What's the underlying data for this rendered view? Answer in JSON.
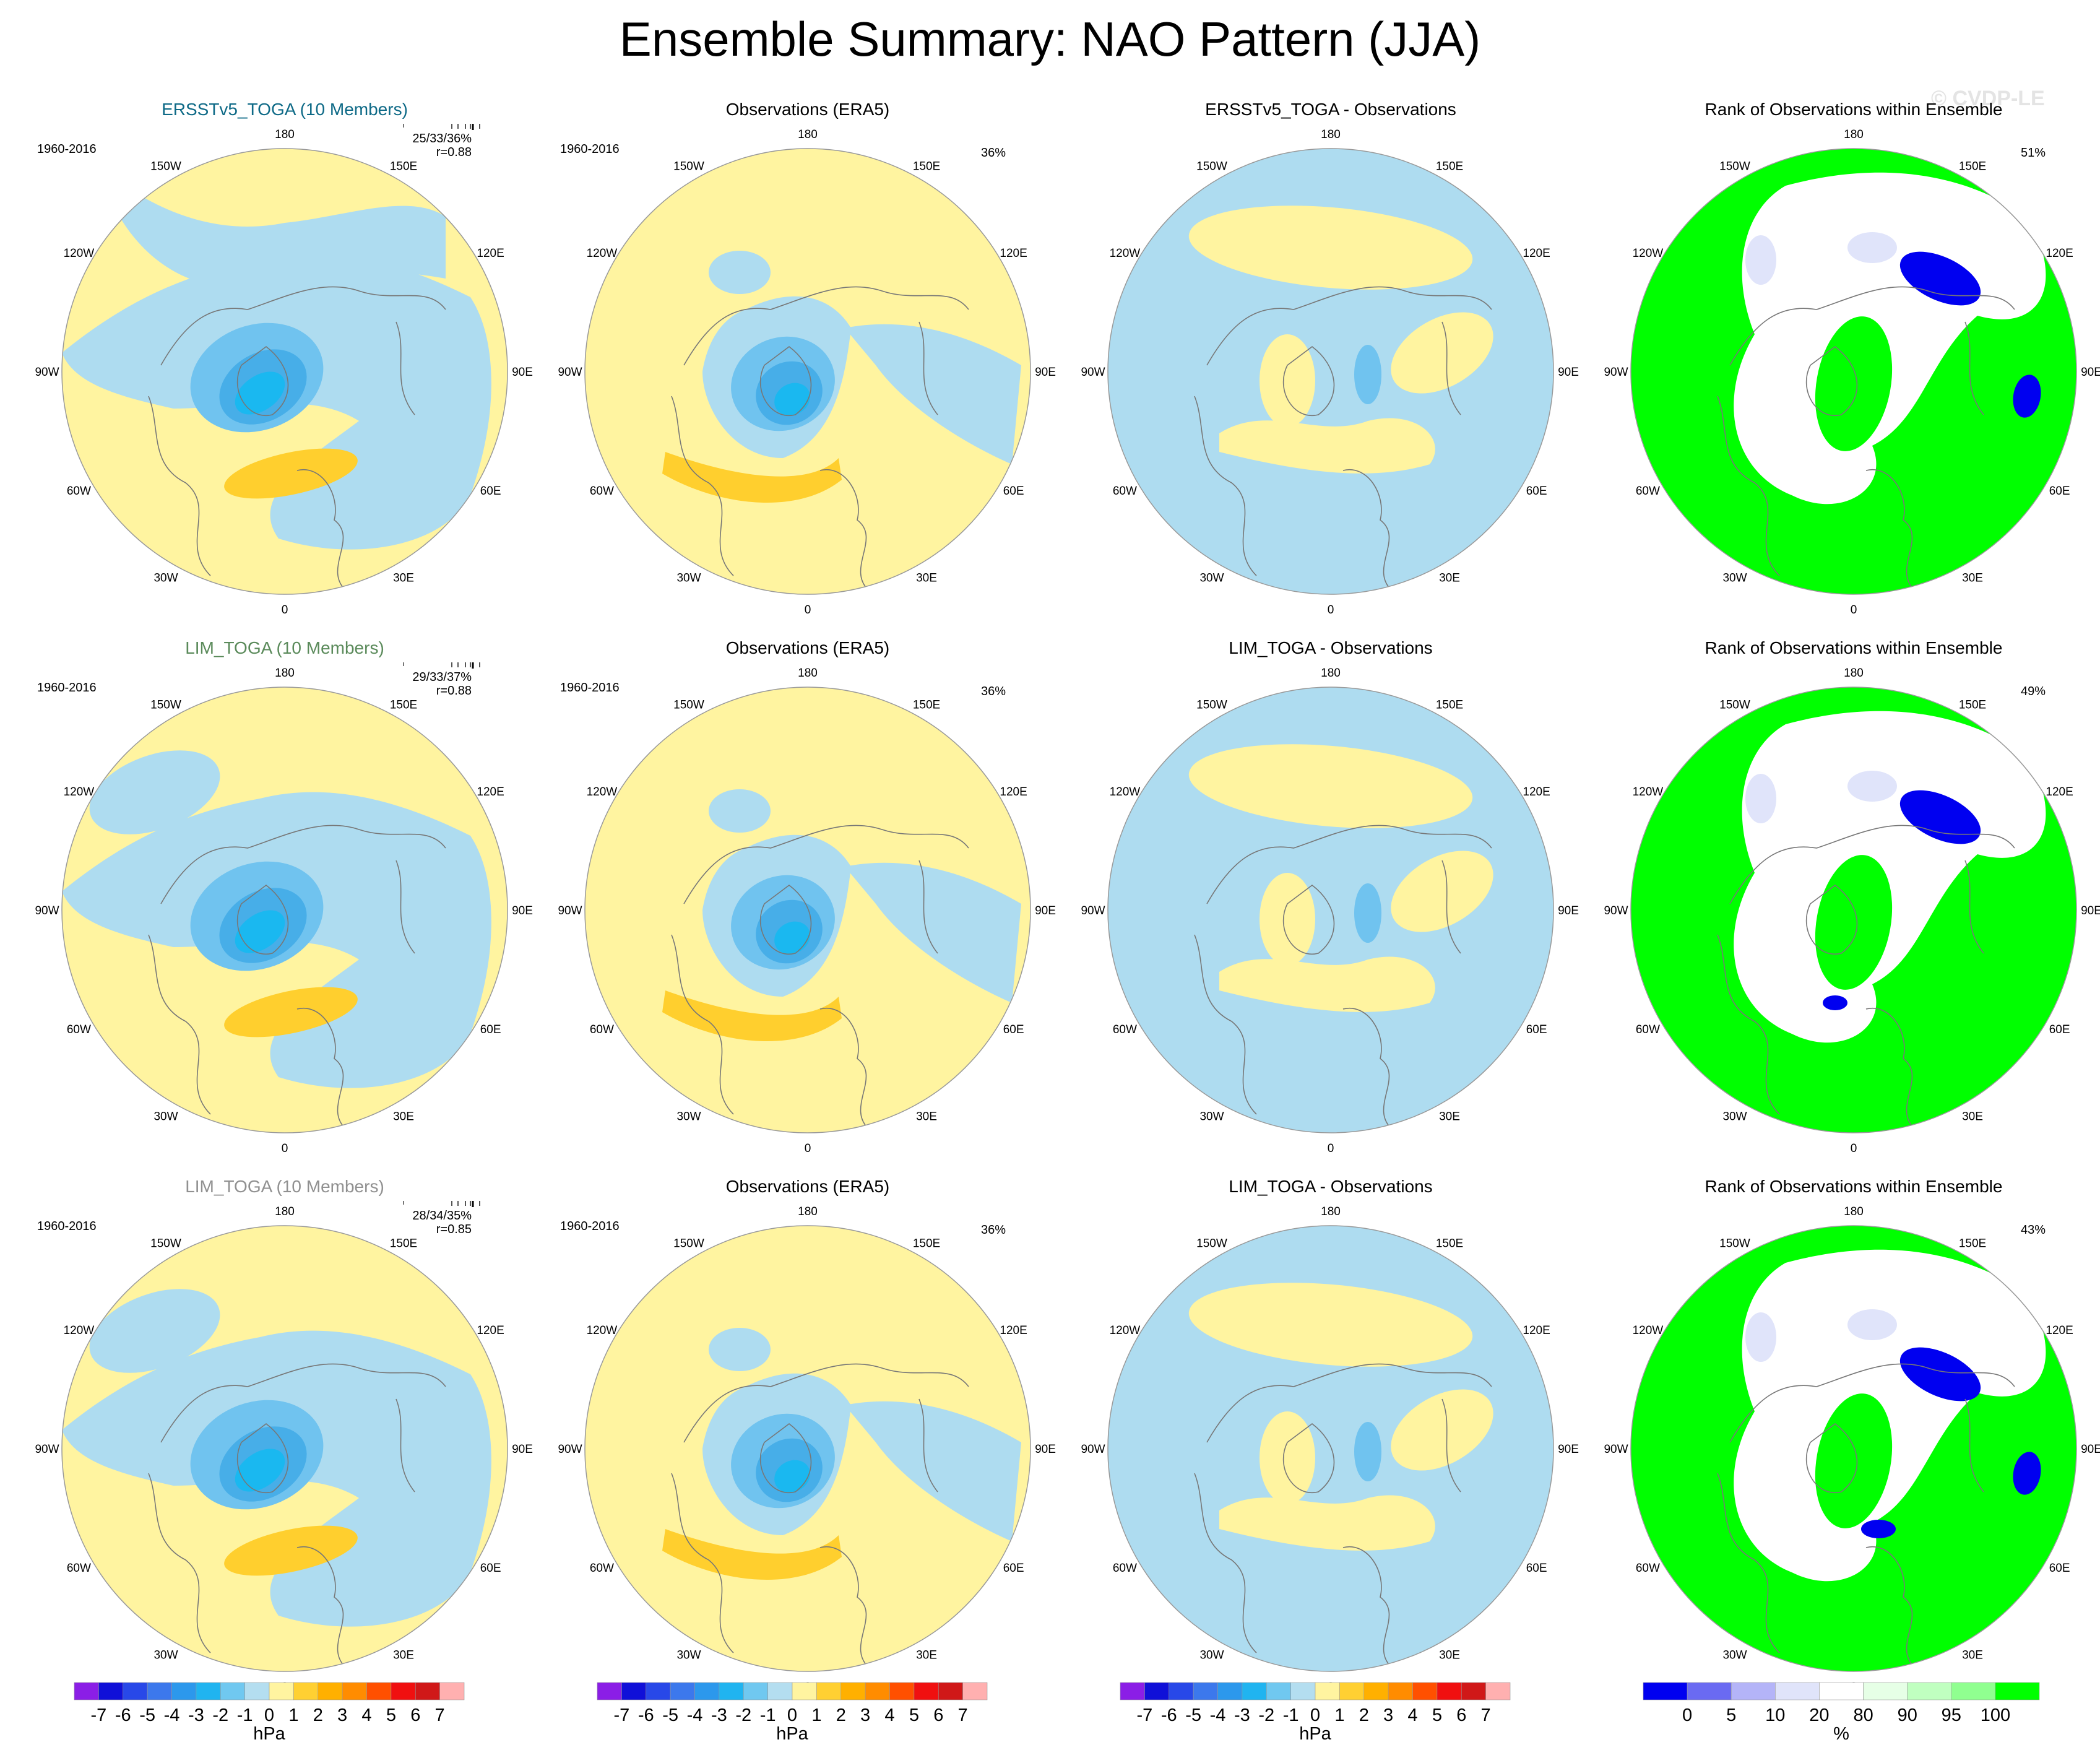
{
  "title": "Ensemble Summary: NAO Pattern (JJA)",
  "watermark": "© CVDP-LE",
  "colors": {
    "blue1": "#aedcf0",
    "blue2": "#70c3ef",
    "blue3": "#47aee8",
    "blue4": "#1ab8f0",
    "yellow1": "#fff4a0",
    "yellow2": "#ffcf2e",
    "yellow3": "#ffb300",
    "rank_green": "#00ff00",
    "rank_blue": "#0000f0",
    "rank_lightblue": "#e0e4fa",
    "rank_lightgreen": "#e6ffe6",
    "coast": "#777777"
  },
  "lon_labels": [
    "180",
    "150E",
    "120E",
    "90E",
    "60E",
    "30E",
    "0",
    "30W",
    "60W",
    "90W",
    "120W",
    "150W"
  ],
  "period": "1960-2016",
  "rows": [
    {
      "model_title": "ERSSTv5_TOGA (10 Members)",
      "model_title_color": "#0d6986",
      "stats": "25/33/36%",
      "r": "r=0.88",
      "obs_title": "Observations (ERA5)",
      "obs_pct": "36%",
      "diff_title": "ERSSTv5_TOGA - Observations",
      "rank_title": "Rank of Observations within Ensemble",
      "rank_pct": "51%"
    },
    {
      "model_title": "LIM_TOGA (10 Members)",
      "model_title_color": "#5a8a5a",
      "stats": "29/33/37%",
      "r": "r=0.88",
      "obs_title": "Observations (ERA5)",
      "obs_pct": "36%",
      "diff_title": "LIM_TOGA - Observations",
      "rank_title": "Rank of Observations within Ensemble",
      "rank_pct": "49%"
    },
    {
      "model_title": "LIM_TOGA (10 Members)",
      "model_title_color": "#909090",
      "stats": "28/34/35%",
      "r": "r=0.85",
      "obs_title": "Observations (ERA5)",
      "obs_pct": "36%",
      "diff_title": "LIM_TOGA - Observations",
      "rank_title": "Rank of Observations within Ensemble",
      "rank_pct": "43%"
    }
  ],
  "colorbar_hpa": {
    "unit": "hPa",
    "ticks": [
      "-7",
      "-6",
      "-5",
      "-4",
      "-3",
      "-2",
      "-1",
      "0",
      "1",
      "2",
      "3",
      "4",
      "5",
      "6",
      "7"
    ],
    "colors": [
      "#8b1ee6",
      "#1010d8",
      "#2848e8",
      "#3c78ec",
      "#2c98ec",
      "#20b4f0",
      "#70c8f0",
      "#b4def0",
      "#fff4a0",
      "#ffd032",
      "#ffb000",
      "#ff8c00",
      "#ff5000",
      "#f01010",
      "#d01818",
      "#ffb0b0"
    ]
  },
  "colorbar_rank": {
    "unit": "%",
    "ticks": [
      "0",
      "5",
      "10",
      "20",
      "80",
      "90",
      "95",
      "100"
    ],
    "colors": [
      "#0000f0",
      "#6a6af2",
      "#b4b4f8",
      "#e0e4fa",
      "#ffffff",
      "#e6ffe6",
      "#c0ffc0",
      "#90ff90",
      "#00ff00"
    ]
  }
}
